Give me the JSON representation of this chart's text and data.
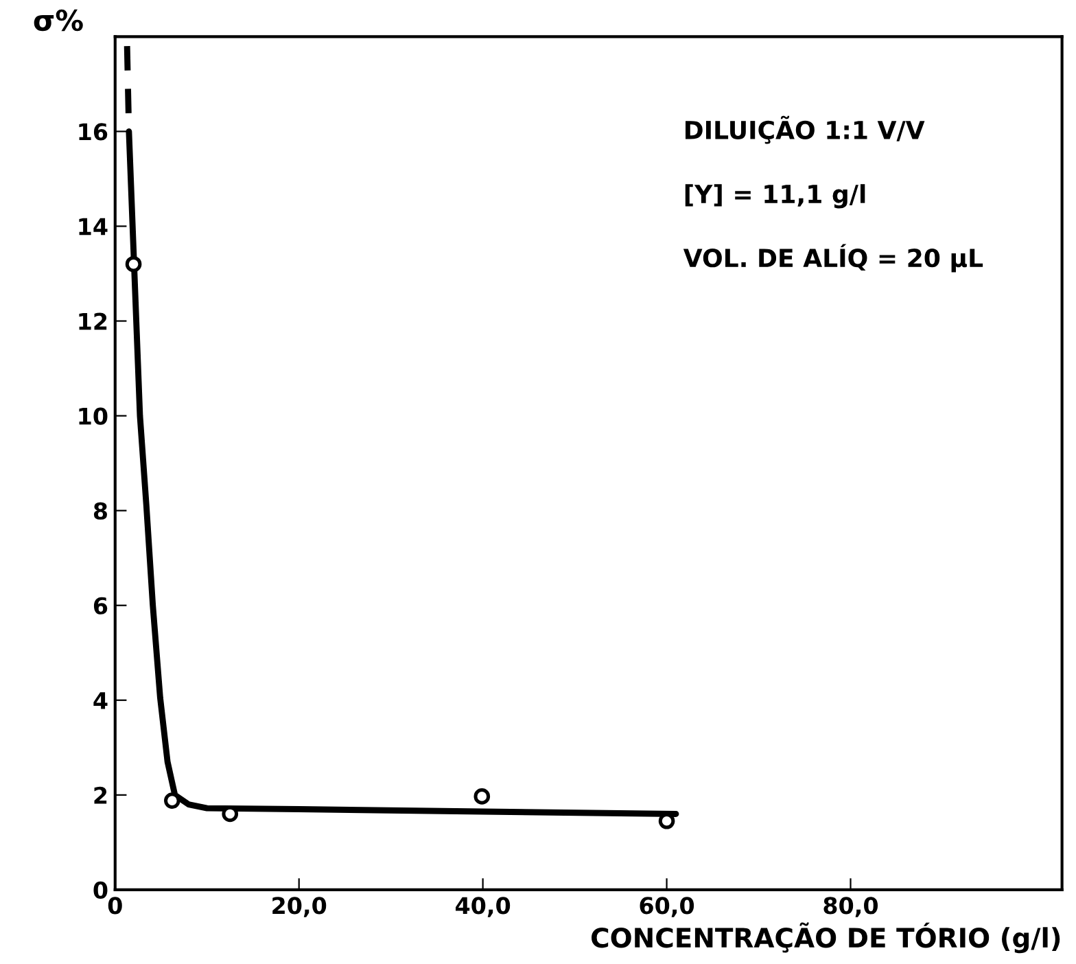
{
  "chart_data": {
    "type": "line",
    "xlabel": "CONCENTRAÇÃO DE TÓRIO (g/l)",
    "ylabel": "σ%",
    "xlim": [
      0,
      103
    ],
    "ylim": [
      0,
      18
    ],
    "xticks": [
      0,
      {
        "value": 20,
        "label": "20,0"
      },
      {
        "value": 40,
        "label": "40,0"
      },
      {
        "value": 60,
        "label": "60,0"
      },
      {
        "value": 80,
        "label": "80,0"
      }
    ],
    "yticks": [
      0,
      2,
      4,
      6,
      8,
      10,
      12,
      14,
      16
    ],
    "grid": false,
    "legend": false,
    "series": [
      {
        "type": "scatter",
        "color": "#000000",
        "marker": "circle",
        "x": [
          2.0,
          6.2,
          12.5,
          39.9,
          60.0
        ],
        "values": [
          13.2,
          1.88,
          1.6,
          1.97,
          1.45
        ]
      },
      {
        "type": "line",
        "color": "#000000",
        "line_style": "solid",
        "x": [
          1.5,
          2.0,
          2.7,
          3.4,
          4.1,
          4.9,
          5.7,
          6.5,
          8.0,
          10.0,
          20.0,
          40.0,
          61.0
        ],
        "values": [
          16.0,
          13.5,
          10.0,
          8.1,
          6.0,
          4.05,
          2.7,
          2.0,
          1.8,
          1.72,
          1.7,
          1.65,
          1.6
        ]
      },
      {
        "type": "line",
        "color": "#000000",
        "line_style": "dashed",
        "x": [
          1.3,
          1.5
        ],
        "values": [
          17.8,
          16.0
        ]
      }
    ],
    "annotations": [
      "DILUIÇÃO 1:1 V/V",
      "[Y] = 11,1 g/l",
      "VOL. DE ALÍQ = 20 μL"
    ]
  }
}
